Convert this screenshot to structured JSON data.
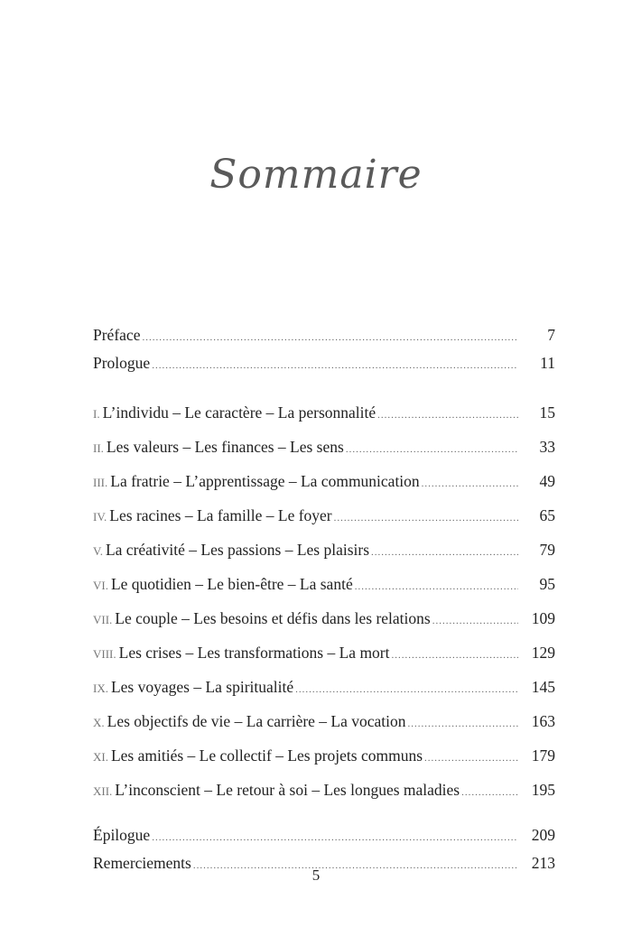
{
  "title": "Sommaire",
  "front": [
    {
      "label": "Préface",
      "page": "7"
    },
    {
      "label": "Prologue",
      "page": "11"
    }
  ],
  "chapters": [
    {
      "num": "I.",
      "label": "L’individu – Le caractère – La personnalité",
      "page": "15"
    },
    {
      "num": "II.",
      "label": "Les valeurs – Les finances – Les sens",
      "page": "33"
    },
    {
      "num": "III.",
      "label": "La fratrie – L’apprentissage – La communication",
      "page": "49"
    },
    {
      "num": "IV.",
      "label": "Les racines – La famille – Le foyer",
      "page": "65"
    },
    {
      "num": "V.",
      "label": "La créativité – Les passions – Les plaisirs",
      "page": "79"
    },
    {
      "num": "VI.",
      "label": "Le quotidien – Le bien-être – La santé",
      "page": "95"
    },
    {
      "num": "VII.",
      "label": "Le couple – Les besoins et défis dans les relations",
      "page": "109"
    },
    {
      "num": "VIII.",
      "label": "Les crises – Les transformations – La mort",
      "page": "129"
    },
    {
      "num": "IX.",
      "label": "Les voyages – La spiritualité",
      "page": "145"
    },
    {
      "num": "X.",
      "label": "Les objectifs de vie – La carrière – La vocation",
      "page": "163"
    },
    {
      "num": "XI.",
      "label": "Les amitiés – Le collectif – Les projets communs",
      "page": "179"
    },
    {
      "num": "XII.",
      "label": "L’inconscient – Le retour à soi – Les longues maladies",
      "page": "195"
    }
  ],
  "back": [
    {
      "label": "Épilogue",
      "page": "209"
    },
    {
      "label": "Remerciements",
      "page": "213"
    }
  ],
  "page_number": "5"
}
